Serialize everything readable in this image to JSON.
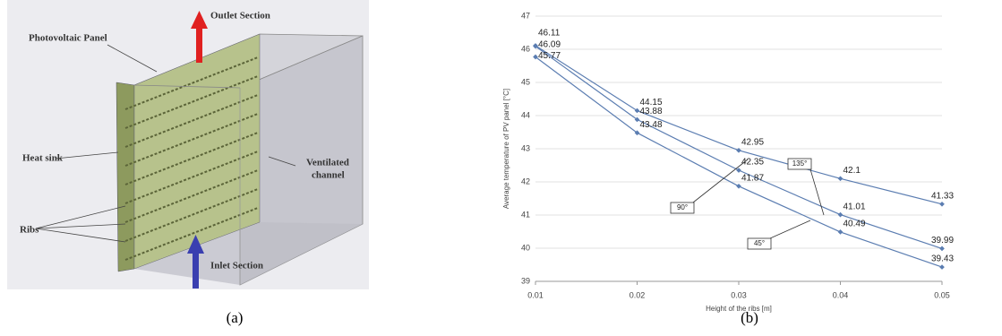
{
  "figure_a": {
    "labels": {
      "outlet": "Outlet Section",
      "panel": "Photovoltaic Panel",
      "heat_sink": "Heat sink",
      "channel": [
        "Ventilated",
        "channel"
      ],
      "ribs": "Ribs",
      "inlet": "Inlet Section"
    },
    "caption": "(a)"
  },
  "chart_data": {
    "type": "line",
    "x_label": "Height of the ribs [m]",
    "y_label": "Average temperature of PV panel [°C]",
    "x": [
      0.01,
      0.02,
      0.03,
      0.04,
      0.05
    ],
    "series": [
      {
        "name": "135°",
        "color": "#5b7db1",
        "values": [
          46.11,
          44.15,
          42.95,
          42.1,
          41.33
        ]
      },
      {
        "name": "90°",
        "color": "#5b7db1",
        "values": [
          46.09,
          43.88,
          42.35,
          41.01,
          39.99
        ]
      },
      {
        "name": "45°",
        "color": "#5b7db1",
        "values": [
          45.77,
          43.48,
          41.87,
          40.49,
          39.43
        ]
      }
    ],
    "xlim": [
      0.01,
      0.05
    ],
    "xticks": [
      0.01,
      0.02,
      0.03,
      0.04,
      0.05
    ],
    "ylim": [
      39,
      47
    ],
    "yticks": [
      39,
      40,
      41,
      42,
      43,
      44,
      45,
      46,
      47
    ],
    "grid": true
  },
  "caption_b": "(b)"
}
